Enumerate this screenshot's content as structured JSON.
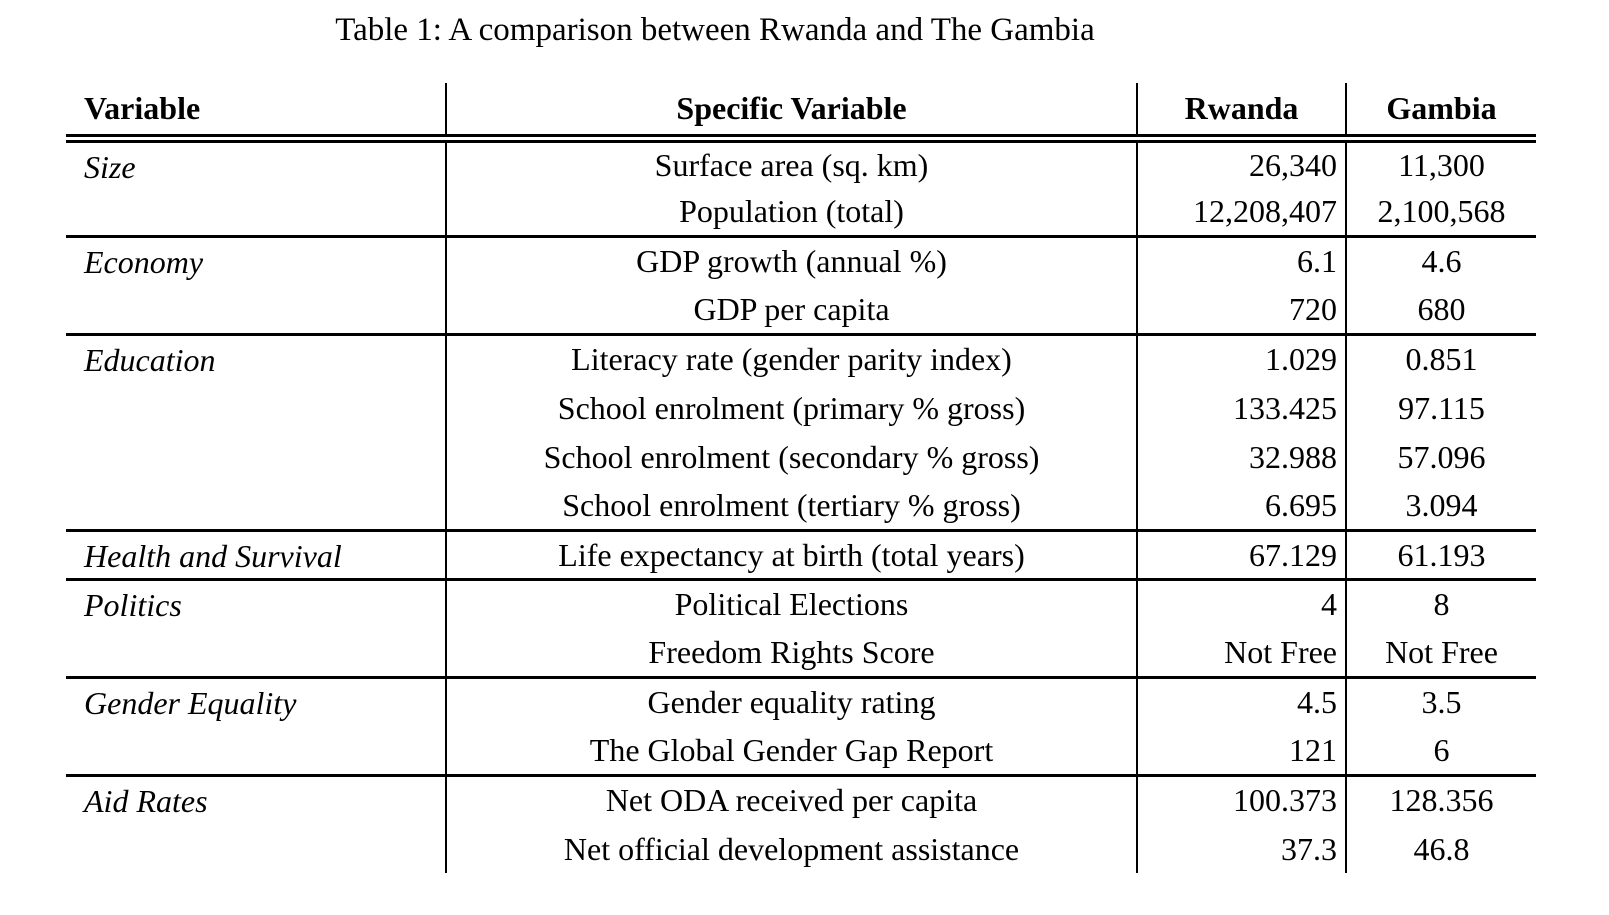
{
  "caption": "Table 1: A comparison between Rwanda and The Gambia",
  "colors": {
    "background": "#ffffff",
    "text": "#000000",
    "rules": "#000000"
  },
  "table": {
    "headers": {
      "variable": "Variable",
      "specific": "Specific Variable",
      "rwanda": "Rwanda",
      "gambia": "Gambia"
    },
    "groups": [
      {
        "category": "Size",
        "rows": [
          {
            "label": "Surface area (sq. km)",
            "rwanda": "26,340",
            "gambia": "11,300"
          },
          {
            "label": "Population (total)",
            "rwanda": "12,208,407",
            "gambia": "2,100,568"
          }
        ]
      },
      {
        "category": "Economy",
        "rows": [
          {
            "label": "GDP growth (annual %)",
            "rwanda": "6.1",
            "gambia": "4.6"
          },
          {
            "label": "GDP per capita",
            "rwanda": "720",
            "gambia": "680"
          }
        ]
      },
      {
        "category": "Education",
        "rows": [
          {
            "label": "Literacy rate (gender parity index)",
            "rwanda": "1.029",
            "gambia": "0.851"
          },
          {
            "label": "School enrolment (primary % gross)",
            "rwanda": "133.425",
            "gambia": "97.115"
          },
          {
            "label": "School enrolment (secondary % gross)",
            "rwanda": "32.988",
            "gambia": "57.096"
          },
          {
            "label": "School enrolment (tertiary % gross)",
            "rwanda": "6.695",
            "gambia": "3.094"
          }
        ]
      },
      {
        "category": "Health and Survival",
        "rows": [
          {
            "label": "Life expectancy at birth (total years)",
            "rwanda": "67.129",
            "gambia": "61.193"
          }
        ]
      },
      {
        "category": "Politics",
        "rows": [
          {
            "label": "Political Elections",
            "rwanda": "4",
            "gambia": "8"
          },
          {
            "label": "Freedom Rights Score",
            "rwanda": "Not Free",
            "gambia": "Not Free"
          }
        ]
      },
      {
        "category": "Gender Equality",
        "rows": [
          {
            "label": "Gender equality rating",
            "rwanda": "4.5",
            "gambia": "3.5"
          },
          {
            "label": "The Global Gender Gap Report",
            "rwanda": "121",
            "gambia": "6"
          }
        ]
      },
      {
        "category": "Aid Rates",
        "rows": [
          {
            "label": "Net ODA received per capita",
            "rwanda": "100.373",
            "gambia": "128.356"
          },
          {
            "label": "Net official development assistance",
            "rwanda": "37.3",
            "gambia": "46.8"
          }
        ]
      }
    ]
  }
}
